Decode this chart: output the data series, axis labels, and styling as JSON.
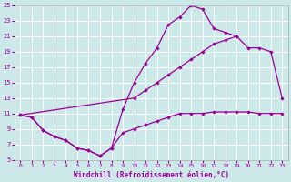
{
  "xlabel": "Windchill (Refroidissement éolien,°C)",
  "bg_color": "#cce8e8",
  "grid_color": "#ffffff",
  "line_color": "#990099",
  "xlim": [
    -0.5,
    23.5
  ],
  "ylim": [
    5,
    25
  ],
  "yticks": [
    5,
    7,
    9,
    11,
    13,
    15,
    17,
    19,
    21,
    23,
    25
  ],
  "xticks": [
    0,
    1,
    2,
    3,
    4,
    5,
    6,
    7,
    8,
    9,
    10,
    11,
    12,
    13,
    14,
    15,
    16,
    17,
    18,
    19,
    20,
    21,
    22,
    23
  ],
  "line1_x": [
    0,
    1,
    2,
    3,
    4,
    5,
    6,
    7,
    8,
    9,
    10,
    11,
    12,
    13,
    14,
    15,
    16,
    17,
    18,
    19
  ],
  "line1_y": [
    10.8,
    10.5,
    8.8,
    8.0,
    7.5,
    6.5,
    6.2,
    5.5,
    6.5,
    11.5,
    15.0,
    17.5,
    19.5,
    22.5,
    23.5,
    25.0,
    24.5,
    22.0,
    21.5,
    21.0
  ],
  "line2_x": [
    0,
    10,
    11,
    12,
    13,
    14,
    15,
    16,
    17,
    18,
    19,
    20,
    21,
    22,
    23
  ],
  "line2_y": [
    10.8,
    13.0,
    14.0,
    15.0,
    16.0,
    17.0,
    18.0,
    19.0,
    20.0,
    20.5,
    21.0,
    19.5,
    19.5,
    19.0,
    13.0
  ],
  "line3_x": [
    0,
    1,
    2,
    3,
    4,
    5,
    6,
    7,
    8,
    9,
    10,
    11,
    12,
    13,
    14,
    15,
    16,
    17,
    18,
    19,
    20,
    21,
    22,
    23
  ],
  "line3_y": [
    10.8,
    10.5,
    8.8,
    8.0,
    7.5,
    6.5,
    6.2,
    5.5,
    6.5,
    8.5,
    9.0,
    9.5,
    10.0,
    10.5,
    11.0,
    11.0,
    11.0,
    11.2,
    11.2,
    11.2,
    11.2,
    11.0,
    11.0,
    11.0
  ]
}
